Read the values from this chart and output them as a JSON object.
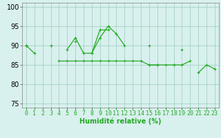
{
  "x": [
    0,
    1,
    2,
    3,
    4,
    5,
    6,
    7,
    8,
    9,
    10,
    11,
    12,
    13,
    14,
    15,
    16,
    17,
    18,
    19,
    20,
    21,
    22,
    23
  ],
  "line1": [
    90,
    88,
    null,
    90,
    null,
    89,
    92,
    88,
    88,
    92,
    95,
    93,
    90,
    null,
    null,
    85,
    85,
    null,
    85,
    null,
    null,
    83,
    85,
    84
  ],
  "line2": [
    90,
    null,
    null,
    90,
    null,
    null,
    91,
    null,
    88,
    94,
    94,
    null,
    null,
    null,
    null,
    90,
    null,
    null,
    null,
    89,
    null,
    null,
    null,
    null
  ],
  "line3": [
    90,
    null,
    null,
    null,
    86,
    86,
    86,
    86,
    86,
    86,
    86,
    86,
    86,
    86,
    86,
    85,
    85,
    85,
    85,
    85,
    86,
    null,
    null,
    null
  ],
  "ylim": [
    74,
    101
  ],
  "yticks": [
    75,
    80,
    85,
    90,
    95,
    100
  ],
  "xlabel": "Humidité relative (%)",
  "bg_color": "#d8f0ee",
  "grid_color": "#99ccbb",
  "line_color": "#22aa22",
  "marker": "+",
  "xlabel_fontsize": 7,
  "tick_fontsize": 6,
  "ytick_fontsize": 7
}
